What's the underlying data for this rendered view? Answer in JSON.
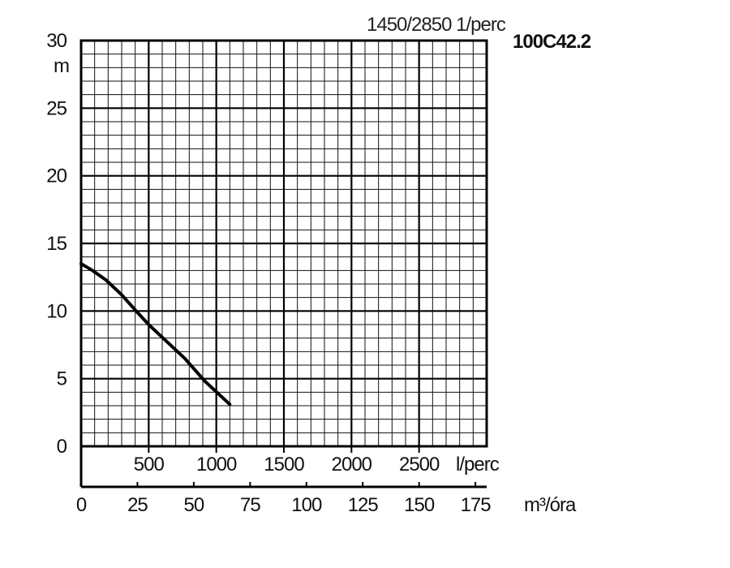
{
  "chart_data": {
    "type": "line",
    "title": "1450/2850  1/perc",
    "model": "100C42.2",
    "ylabel": "m",
    "ylim": [
      0,
      30
    ],
    "y_ticks": [
      "0",
      "5",
      "10",
      "15",
      "20",
      "25",
      "30"
    ],
    "x_lps_ticks": [
      "500",
      "1000",
      "1500",
      "2000",
      "2500"
    ],
    "x_lps_unit": "l/perc",
    "x_m3h_ticks": [
      "0",
      "25",
      "50",
      "75",
      "100",
      "125",
      "150",
      "175"
    ],
    "x_m3h_unit": "m³/óra",
    "xlim_m3h": [
      0,
      180
    ],
    "grid": true,
    "series": [
      {
        "x": [
          0,
          5,
          11,
          18,
          25,
          30,
          37,
          46,
          55,
          66
        ],
        "y": [
          13.5,
          13.0,
          12.3,
          11.2,
          9.9,
          9.0,
          7.9,
          6.5,
          4.8,
          3.1
        ]
      }
    ]
  }
}
